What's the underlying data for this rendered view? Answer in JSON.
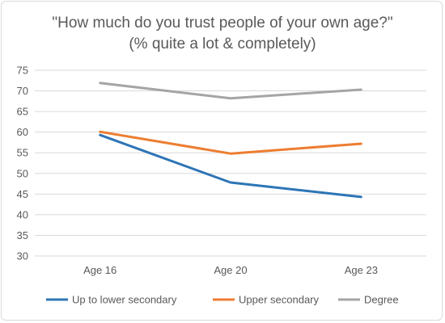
{
  "chart_data": {
    "type": "line",
    "title": "\"How much do you trust people of your own age?\"",
    "subtitle": "(% quite a lot & completely)",
    "categories": [
      "Age 16",
      "Age 20",
      "Age 23"
    ],
    "series": [
      {
        "name": "Up to lower secondary",
        "color": "#2e75b6",
        "values": [
          59.3,
          47.8,
          44.3
        ]
      },
      {
        "name": "Upper secondary",
        "color": "#ed7d31",
        "values": [
          60.1,
          54.8,
          57.2
        ]
      },
      {
        "name": "Degree",
        "color": "#a5a5a5",
        "values": [
          71.9,
          68.2,
          70.3
        ]
      }
    ],
    "ylim": [
      30,
      75
    ],
    "yticks": [
      30,
      35,
      40,
      45,
      50,
      55,
      60,
      65,
      70,
      75
    ],
    "grid": true,
    "legend_position": "bottom",
    "gridline_color": "#d9d9d9"
  }
}
